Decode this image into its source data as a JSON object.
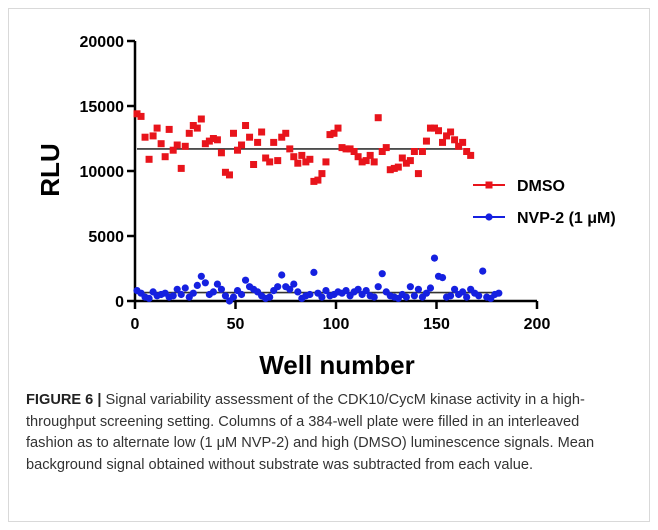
{
  "chart_data": {
    "type": "scatter",
    "xlabel": "Well number",
    "ylabel": "RLU",
    "xlim": [
      0,
      200
    ],
    "ylim": [
      0,
      20000
    ],
    "xticks": [
      "0",
      "50",
      "100",
      "150",
      "200"
    ],
    "yticks": [
      "0",
      "5000",
      "10000",
      "15000",
      "20000"
    ],
    "grid": false,
    "legend_position": "right",
    "series": [
      {
        "name": "DMSO",
        "color": "#e8141b",
        "marker": "square",
        "mean": 11700,
        "mean_x_range": [
          1,
          163
        ],
        "x": [
          1,
          3,
          5,
          7,
          9,
          11,
          13,
          15,
          17,
          19,
          21,
          23,
          25,
          27,
          29,
          31,
          33,
          35,
          37,
          39,
          41,
          43,
          45,
          47,
          49,
          51,
          53,
          55,
          57,
          59,
          61,
          63,
          65,
          67,
          69,
          71,
          73,
          75,
          77,
          79,
          81,
          83,
          85,
          87,
          89,
          91,
          93,
          95,
          97,
          99,
          101,
          103,
          105,
          107,
          109,
          111,
          113,
          115,
          117,
          119,
          121,
          123,
          125,
          127,
          129,
          131,
          133,
          135,
          137,
          139,
          141,
          143,
          145,
          147,
          149,
          151,
          153,
          155,
          157,
          159,
          161,
          163,
          165,
          167
        ],
        "y": [
          14400,
          14200,
          12600,
          10900,
          12700,
          13300,
          12100,
          11100,
          13200,
          11600,
          12000,
          10200,
          11900,
          12900,
          13500,
          13300,
          14000,
          12100,
          12300,
          12500,
          12400,
          11400,
          9900,
          9700,
          12900,
          11600,
          12000,
          13500,
          12600,
          10500,
          12200,
          13000,
          11000,
          10700,
          12200,
          10800,
          12600,
          12900,
          11700,
          11100,
          10600,
          11200,
          10700,
          10900,
          9200,
          9300,
          9800,
          10700,
          12800,
          12900,
          13300,
          11800,
          11700,
          11700,
          11500,
          11100,
          10700,
          10800,
          11200,
          10700,
          14100,
          11500,
          11800,
          10100,
          10200,
          10300,
          11000,
          10600,
          10800,
          11500,
          9800,
          11500,
          12300,
          13300,
          13300,
          13100,
          12200,
          12700,
          13000,
          12400,
          11900,
          12200,
          11500,
          11200
        ]
      },
      {
        "name": "NVP-2 (1 μM)",
        "color": "#1520e0",
        "marker": "circle",
        "mean": 650,
        "mean_x_range": [
          1,
          178
        ],
        "x": [
          1,
          3,
          5,
          7,
          9,
          11,
          13,
          15,
          17,
          19,
          21,
          23,
          25,
          27,
          29,
          31,
          33,
          35,
          37,
          39,
          41,
          43,
          45,
          47,
          49,
          51,
          53,
          55,
          57,
          59,
          61,
          63,
          65,
          67,
          69,
          71,
          73,
          75,
          77,
          79,
          81,
          83,
          85,
          87,
          89,
          91,
          93,
          95,
          97,
          99,
          101,
          103,
          105,
          107,
          109,
          111,
          113,
          115,
          117,
          119,
          121,
          123,
          125,
          127,
          129,
          131,
          133,
          135,
          137,
          139,
          141,
          143,
          145,
          147,
          149,
          151,
          153,
          155,
          157,
          159,
          161,
          163,
          165,
          167,
          169,
          171,
          173,
          175,
          177,
          179,
          181
        ],
        "y": [
          800,
          600,
          300,
          200,
          700,
          400,
          500,
          600,
          300,
          400,
          900,
          500,
          1000,
          300,
          600,
          1200,
          1900,
          1400,
          500,
          700,
          1300,
          900,
          400,
          0,
          300,
          800,
          500,
          1600,
          1100,
          900,
          700,
          400,
          200,
          300,
          800,
          1100,
          2000,
          1100,
          900,
          1300,
          700,
          200,
          400,
          500,
          2200,
          600,
          300,
          800,
          400,
          500,
          700,
          600,
          800,
          400,
          700,
          900,
          500,
          800,
          400,
          300,
          1100,
          2100,
          700,
          400,
          300,
          200,
          500,
          300,
          1100,
          400,
          900,
          300,
          600,
          1000,
          3300,
          1900,
          1800,
          300,
          400,
          900,
          500,
          700,
          300,
          900,
          600,
          400,
          2300,
          300,
          200,
          500,
          600
        ]
      }
    ]
  },
  "caption": {
    "label": "FIGURE 6 |",
    "text": " Signal variability assessment of the CDK10/CycM kinase activity in a high-throughput screening setting. Columns of a 384-well plate were filled in an interleaved fashion as to alternate low (1 μM NVP-2) and high (DMSO) luminescence signals. Mean background signal obtained without substrate was subtracted from each value."
  }
}
